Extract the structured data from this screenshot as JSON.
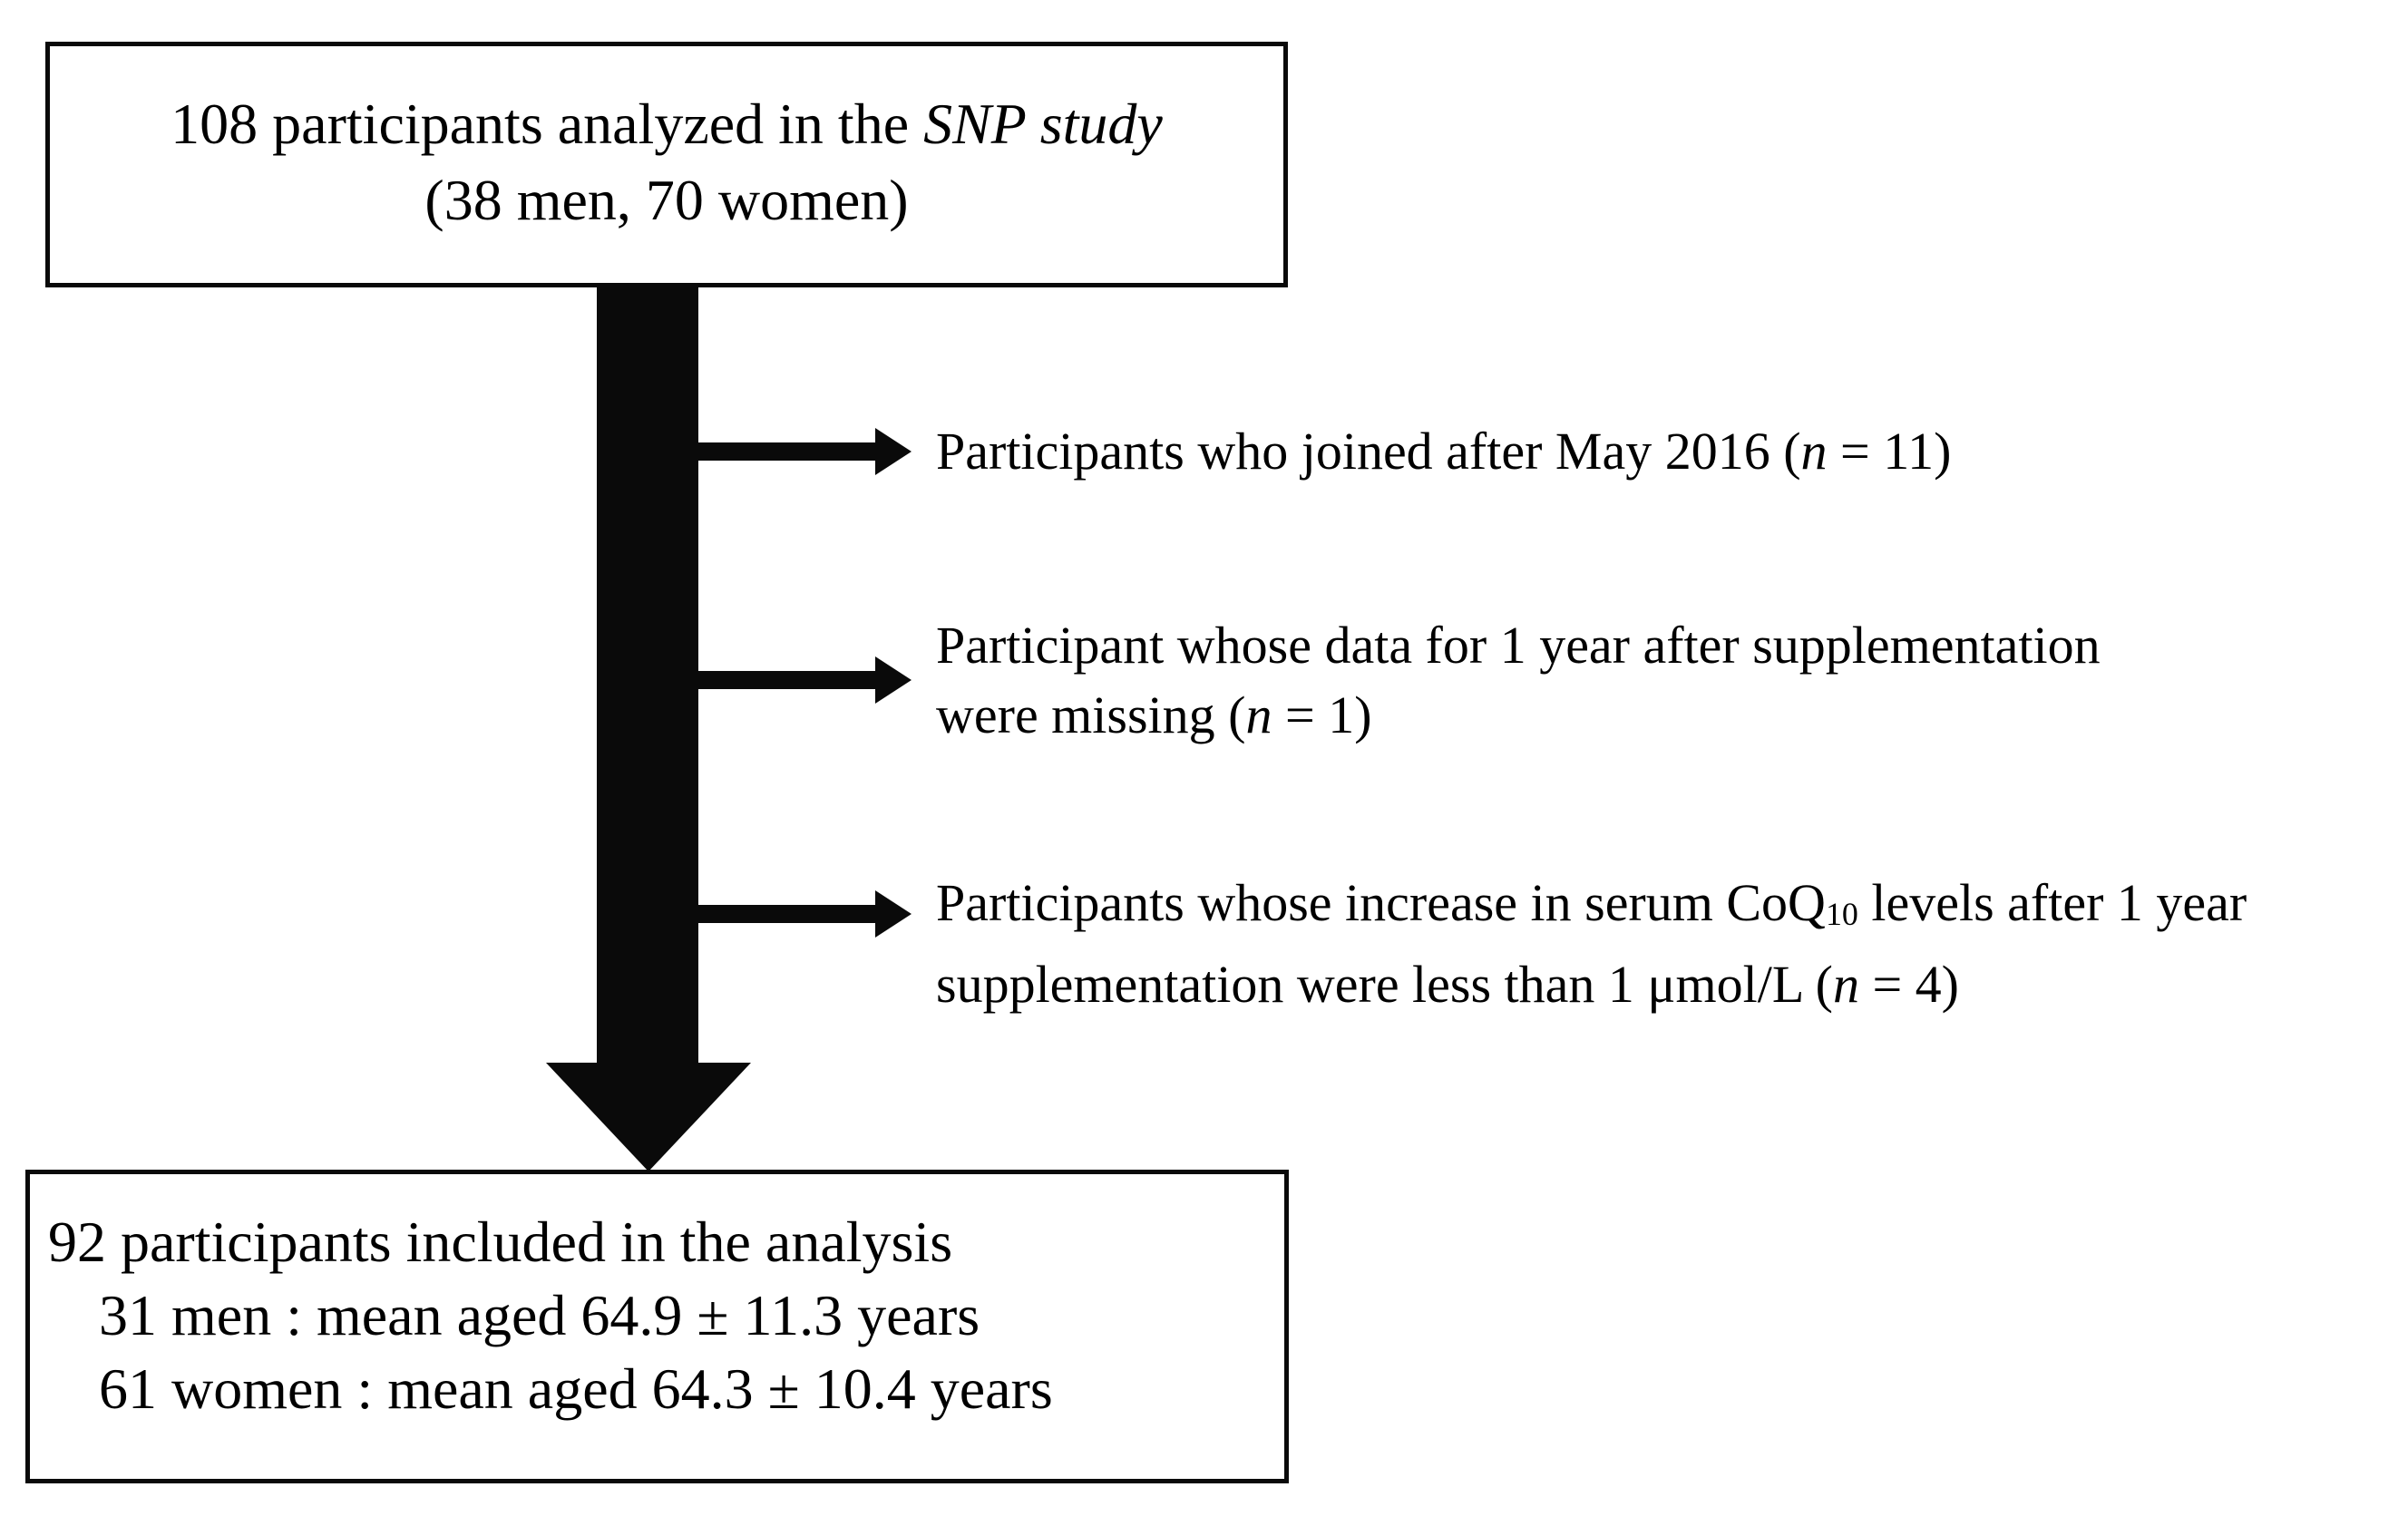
{
  "colors": {
    "ink": "#0a0a0a",
    "background": "#ffffff"
  },
  "top_box": {
    "lines": [
      {
        "segments": [
          {
            "t": "108 participants analyzed in the "
          },
          {
            "t": "SNP study",
            "i": true
          }
        ]
      },
      {
        "segments": [
          {
            "t": "(38 men, 70 women)"
          }
        ]
      }
    ]
  },
  "exclusions": [
    {
      "lines": [
        {
          "segments": [
            {
              "t": "Participants who joined after May 2016 ("
            },
            {
              "t": "n",
              "i": true
            },
            {
              "t": " = 11)"
            }
          ]
        }
      ]
    },
    {
      "lines": [
        {
          "segments": [
            {
              "t": "Participant whose data for 1 year after supplementation"
            }
          ]
        },
        {
          "segments": [
            {
              "t": "were missing ("
            },
            {
              "t": "n",
              "i": true
            },
            {
              "t": " = 1)"
            }
          ]
        }
      ]
    },
    {
      "lines": [
        {
          "segments": [
            {
              "t": "Participants whose increase in serum CoQ"
            },
            {
              "t": "10",
              "sub": true
            },
            {
              "t": " levels after 1 year"
            }
          ]
        },
        {
          "segments": [
            {
              "t": "supplementation were less than 1 μmol/L ("
            },
            {
              "t": "n",
              "i": true
            },
            {
              "t": " = 4)"
            }
          ]
        }
      ]
    }
  ],
  "bottom_box": {
    "lines": [
      {
        "segments": [
          {
            "t": "92 participants included in the analysis"
          }
        ]
      },
      {
        "segments": [
          {
            "t": "31 men : mean aged 64.9 ± 11.3 years"
          }
        ]
      },
      {
        "segments": [
          {
            "t": "61 women : mean aged 64.3 ± 10.4 years"
          }
        ]
      }
    ]
  }
}
